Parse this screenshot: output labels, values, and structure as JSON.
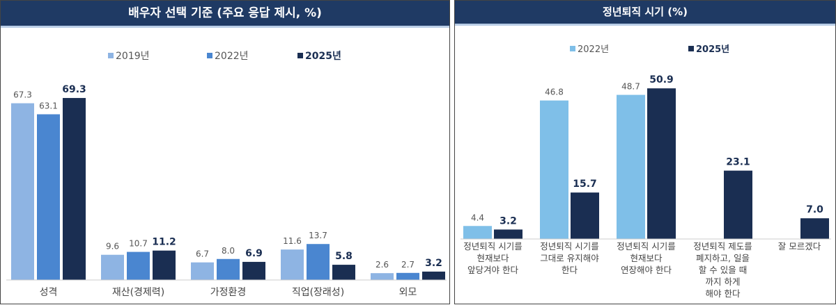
{
  "chart_data": [
    {
      "type": "bar",
      "title": "배우자 선택 기준 (주요 응답 제시, %)",
      "categories": [
        "성격",
        "재산(경제력)",
        "가정환경",
        "직업(장래성)",
        "외모"
      ],
      "series": [
        {
          "name": "2019년",
          "color": "#8eb4e3",
          "values": [
            67.3,
            9.6,
            6.7,
            11.6,
            2.6
          ]
        },
        {
          "name": "2022년",
          "color": "#4a86d0",
          "values": [
            63.1,
            10.7,
            8.0,
            13.7,
            2.7
          ]
        },
        {
          "name": "2025년",
          "color": "#1a2e52",
          "values": [
            69.3,
            11.2,
            6.9,
            5.8,
            3.2
          ]
        }
      ],
      "legend": "top",
      "grid": false,
      "ylim": [
        0,
        75
      ]
    },
    {
      "type": "bar",
      "title": "정년퇴직 시기 (%)",
      "categories": [
        "정년퇴직 시기를\n현재보다\n앞당겨야 한다",
        "정년퇴직 시기를\n그대로 유지해야\n한다",
        "정년퇴직 시기를\n현재보다\n연장해야 한다",
        "정년퇴직 제도를\n폐지하고, 일을\n할 수 있을 때\n까지 하게\n해야 한다",
        "잘 모르겠다"
      ],
      "series": [
        {
          "name": "2022년",
          "color": "#7fbfe8",
          "values": [
            4.4,
            46.8,
            48.7,
            null,
            null
          ]
        },
        {
          "name": "2025년",
          "color": "#1a2e52",
          "values": [
            3.2,
            15.7,
            50.9,
            23.1,
            7.0
          ]
        }
      ],
      "legend": "top",
      "grid": false,
      "ylim": [
        0,
        55
      ]
    }
  ]
}
